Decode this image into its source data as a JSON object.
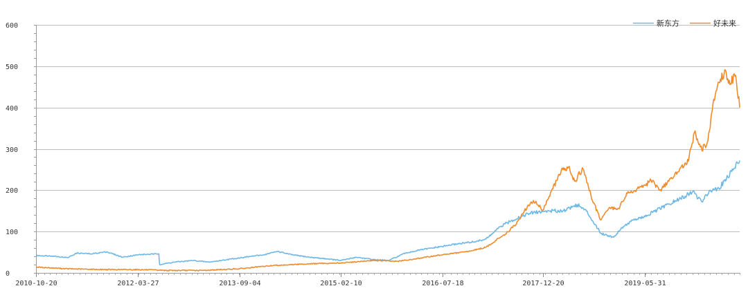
{
  "chart_data": {
    "type": "line",
    "title": "",
    "xlabel": "",
    "ylabel": "",
    "ylim": [
      0,
      600
    ],
    "y_ticks": [
      0,
      100,
      200,
      300,
      400,
      500,
      600
    ],
    "x_range": [
      "2010-10-20",
      "2020-10-01"
    ],
    "x_tick_labels": [
      "2010-10-20",
      "2012-03-27",
      "2013-09-04",
      "2015-02-10",
      "2016-07-18",
      "2017-12-20",
      "2019-05-31"
    ],
    "grid": true,
    "legend_position": "top-right",
    "series": [
      {
        "name": "新东方",
        "color": "#6cb8e6",
        "points": [
          [
            "2010-10-20",
            42
          ],
          [
            "2011-01-10",
            41
          ],
          [
            "2011-04-01",
            37
          ],
          [
            "2011-05-20",
            48
          ],
          [
            "2011-08-01",
            46
          ],
          [
            "2011-10-20",
            51
          ],
          [
            "2012-01-10",
            38
          ],
          [
            "2012-04-01",
            44
          ],
          [
            "2012-07-15",
            46
          ],
          [
            "2012-07-19",
            20
          ],
          [
            "2012-10-01",
            26
          ],
          [
            "2013-01-10",
            30
          ],
          [
            "2013-04-01",
            26
          ],
          [
            "2013-07-01",
            32
          ],
          [
            "2013-10-01",
            38
          ],
          [
            "2014-01-10",
            44
          ],
          [
            "2014-03-20",
            52
          ],
          [
            "2014-06-01",
            44
          ],
          [
            "2014-09-01",
            38
          ],
          [
            "2014-12-01",
            34
          ],
          [
            "2015-02-10",
            30
          ],
          [
            "2015-05-01",
            38
          ],
          [
            "2015-08-01",
            32
          ],
          [
            "2015-10-15",
            30
          ],
          [
            "2016-01-10",
            48
          ],
          [
            "2016-04-01",
            56
          ],
          [
            "2016-07-18",
            64
          ],
          [
            "2016-10-01",
            70
          ],
          [
            "2017-01-10",
            76
          ],
          [
            "2017-03-01",
            82
          ],
          [
            "2017-05-15",
            112
          ],
          [
            "2017-07-01",
            124
          ],
          [
            "2017-09-01",
            138
          ],
          [
            "2017-11-01",
            146
          ],
          [
            "2018-01-20",
            150
          ],
          [
            "2018-04-01",
            150
          ],
          [
            "2018-06-15",
            165
          ],
          [
            "2018-08-01",
            150
          ],
          [
            "2018-10-15",
            96
          ],
          [
            "2018-12-20",
            86
          ],
          [
            "2019-02-01",
            110
          ],
          [
            "2019-04-01",
            128
          ],
          [
            "2019-05-31",
            136
          ],
          [
            "2019-08-01",
            152
          ],
          [
            "2019-10-01",
            166
          ],
          [
            "2019-12-01",
            180
          ],
          [
            "2020-02-01",
            196
          ],
          [
            "2020-03-20",
            172
          ],
          [
            "2020-05-01",
            200
          ],
          [
            "2020-06-15",
            205
          ],
          [
            "2020-08-01",
            232
          ],
          [
            "2020-09-01",
            252
          ],
          [
            "2020-10-01",
            272
          ]
        ]
      },
      {
        "name": "好未来",
        "color": "#f08b2c",
        "points": [
          [
            "2010-10-20",
            14
          ],
          [
            "2011-04-01",
            10
          ],
          [
            "2011-10-01",
            8
          ],
          [
            "2012-03-27",
            8
          ],
          [
            "2012-09-01",
            6
          ],
          [
            "2013-03-01",
            6
          ],
          [
            "2013-09-04",
            10
          ],
          [
            "2014-03-01",
            18
          ],
          [
            "2014-09-01",
            22
          ],
          [
            "2015-02-10",
            24
          ],
          [
            "2015-08-01",
            30
          ],
          [
            "2015-12-01",
            28
          ],
          [
            "2016-03-01",
            34
          ],
          [
            "2016-07-18",
            44
          ],
          [
            "2016-12-01",
            52
          ],
          [
            "2017-03-01",
            62
          ],
          [
            "2017-06-01",
            92
          ],
          [
            "2017-08-01",
            116
          ],
          [
            "2017-09-15",
            150
          ],
          [
            "2017-11-01",
            175
          ],
          [
            "2017-12-20",
            152
          ],
          [
            "2018-02-01",
            198
          ],
          [
            "2018-04-01",
            250
          ],
          [
            "2018-05-01",
            256
          ],
          [
            "2018-06-01",
            222
          ],
          [
            "2018-07-15",
            252
          ],
          [
            "2018-09-01",
            176
          ],
          [
            "2018-10-15",
            128
          ],
          [
            "2018-12-01",
            158
          ],
          [
            "2019-01-15",
            156
          ],
          [
            "2019-03-01",
            192
          ],
          [
            "2019-05-31",
            212
          ],
          [
            "2019-07-01",
            224
          ],
          [
            "2019-08-15",
            200
          ],
          [
            "2019-10-01",
            222
          ],
          [
            "2019-11-15",
            244
          ],
          [
            "2020-01-10",
            270
          ],
          [
            "2020-02-10",
            340
          ],
          [
            "2020-03-20",
            296
          ],
          [
            "2020-04-20",
            320
          ],
          [
            "2020-05-20",
            420
          ],
          [
            "2020-06-20",
            460
          ],
          [
            "2020-07-20",
            490
          ],
          [
            "2020-08-15",
            458
          ],
          [
            "2020-09-10",
            478
          ],
          [
            "2020-10-01",
            400
          ]
        ]
      }
    ]
  }
}
